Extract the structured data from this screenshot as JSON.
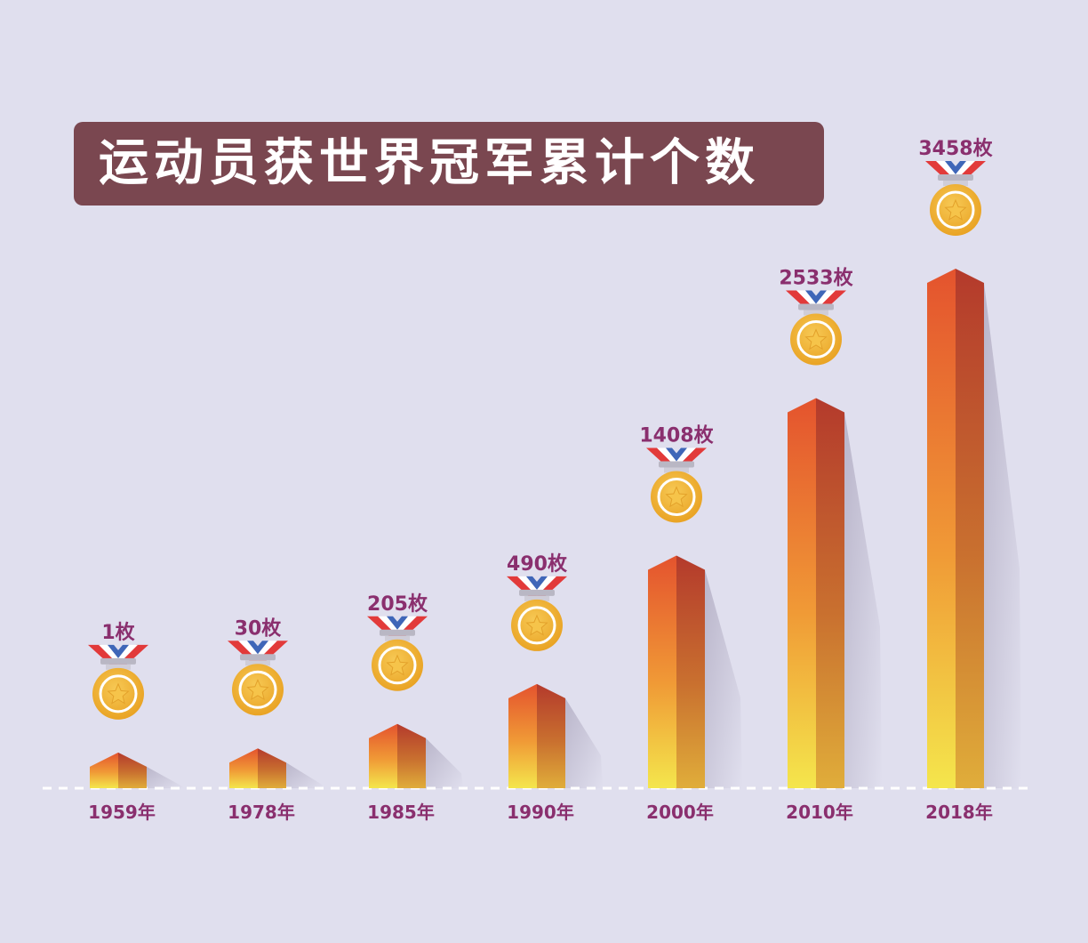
{
  "title": "运动员获世界冠军累计个数",
  "colors": {
    "background": "#e0dfee",
    "title_bg": "#7a4750",
    "label": "#8a2f6e",
    "bar_top": "#e4532e",
    "bar_bottom": "#f4e64c",
    "medal_gold": "#f1b52b",
    "ribbon_red": "#e23a3a",
    "ribbon_blue": "#3f66b8"
  },
  "chart_data": {
    "type": "bar",
    "title": "运动员获世界冠军累计个数",
    "categories": [
      "1959年",
      "1978年",
      "1985年",
      "1990年",
      "2000年",
      "2010年",
      "2018年"
    ],
    "values": [
      1,
      30,
      205,
      490,
      1408,
      2533,
      3458
    ],
    "value_labels": [
      "1枚",
      "30枚",
      "205枚",
      "490枚",
      "1408枚",
      "2533枚",
      "3458枚"
    ],
    "unit": "枚",
    "icon": "gold-medal-icon",
    "baseline": "dashed",
    "grid": false,
    "legend": "none"
  }
}
